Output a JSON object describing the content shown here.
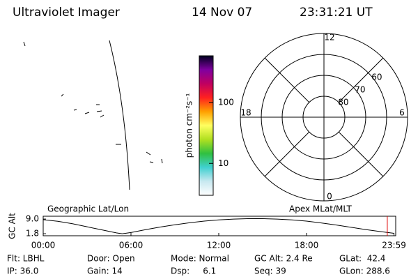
{
  "header": {
    "title": "Ultraviolet Imager",
    "date": "14 Nov 07",
    "time": "23:31:21 UT"
  },
  "colorbar": {
    "label": "photon cm⁻²s⁻¹",
    "log": true,
    "lim": [
      3,
      580
    ],
    "ticks": [
      10,
      100
    ],
    "colors": [
      "#ffffff",
      "#c8e8f0",
      "#40d0d0",
      "#30c040",
      "#b0e020",
      "#ffff60",
      "#ffa000",
      "#ff2020",
      "#c00060",
      "#8000a0",
      "#000020"
    ]
  },
  "polar": {
    "lat_lim": [
      90,
      50
    ],
    "lat_circles": [
      80,
      70,
      60,
      50
    ],
    "lat_labels": [
      80,
      70,
      60
    ],
    "mlt_labels": [
      12,
      18,
      0,
      6
    ]
  },
  "altitude": {
    "title_left": "Geographic Lat/Lon",
    "title_right": "Apex  MLat/MLT",
    "ylabel": "GC Alt",
    "xlim": [
      0,
      24
    ],
    "ylim": [
      0.8,
      10.4
    ],
    "xticks": [
      {
        "value": 0,
        "label": "00:00"
      },
      {
        "value": 6,
        "label": "06:00"
      },
      {
        "value": 12,
        "label": "12:00"
      },
      {
        "value": 18,
        "label": "18:00"
      },
      {
        "value": 23.98,
        "label": "23:59"
      }
    ],
    "yticks": [
      {
        "value": 9,
        "label": "9.0"
      },
      {
        "value": 1.8,
        "label": "1.8"
      }
    ],
    "x": [
      0,
      1,
      2,
      3,
      4,
      5,
      5.4,
      6,
      7,
      8,
      9,
      10,
      11,
      12,
      13,
      14,
      14.6,
      15,
      16,
      17,
      18,
      19,
      20,
      21,
      22,
      23,
      23.98
    ],
    "values": [
      8.7,
      7.9,
      6.7,
      5.2,
      3.7,
      2.2,
      1.8,
      2.4,
      3.8,
      5.1,
      6.2,
      7.2,
      8.0,
      8.6,
      9.0,
      9.2,
      9.25,
      9.2,
      9.0,
      8.6,
      8.0,
      7.1,
      6.1,
      5.0,
      3.9,
      2.9,
      2.0
    ],
    "current_time": 23.52,
    "current_color": "#e00000"
  },
  "info": [
    [
      "Flt: LBHL",
      "Door: Open",
      "Mode: Normal",
      "GC Alt: 2.4 Re",
      "GLat:  42.4"
    ],
    [
      "IP: 36.0",
      "Gain: 14",
      "Dsp:     6.1",
      "Seq: 39",
      "GLon: 288.6"
    ]
  ]
}
